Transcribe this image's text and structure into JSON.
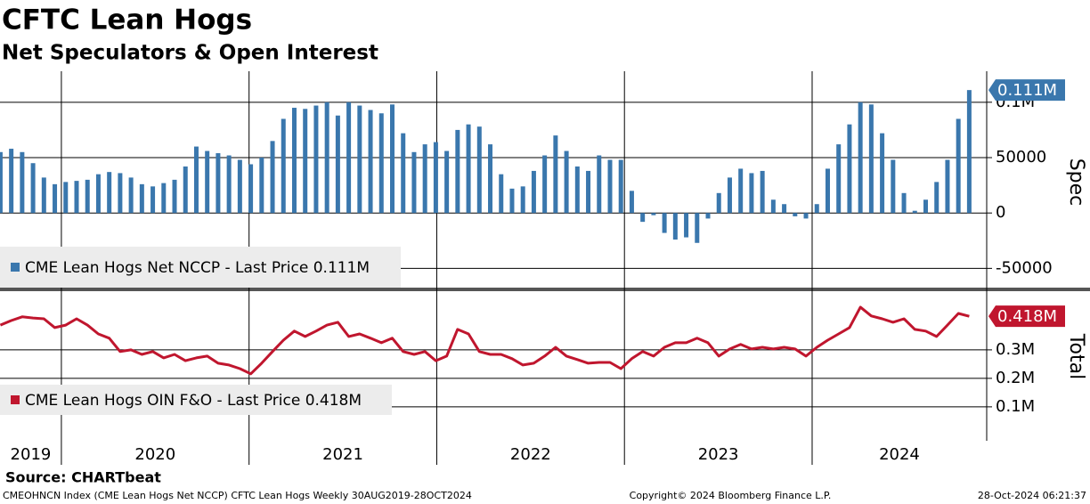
{
  "chart_data": {
    "title": "CFTC Lean Hogs",
    "subtitle": "Net Speculators & Open Interest",
    "source": "Source: CHARTbeat",
    "footer": {
      "left": "CMEOHNCN Index (CME Lean Hogs Net NCCP) CFTC Lean Hogs  Weekly 30AUG2019-28OCT2024",
      "center": "Copyright© 2024 Bloomberg Finance L.P.",
      "right": "28-Oct-2024 06:21:37"
    },
    "xlim": [
      2019.673,
      2024.93
    ],
    "xticks": [
      2019,
      2020,
      2021,
      2022,
      2023,
      2024
    ],
    "grid": true,
    "x": [
      2019.675,
      2019.733,
      2019.791,
      2019.849,
      2019.907,
      2019.965,
      2020.023,
      2020.081,
      2020.139,
      2020.197,
      2020.255,
      2020.313,
      2020.371,
      2020.429,
      2020.487,
      2020.545,
      2020.603,
      2020.661,
      2020.719,
      2020.777,
      2020.835,
      2020.893,
      2020.951,
      2021.009,
      2021.067,
      2021.125,
      2021.183,
      2021.241,
      2021.299,
      2021.357,
      2021.415,
      2021.473,
      2021.531,
      2021.589,
      2021.647,
      2021.705,
      2021.763,
      2021.821,
      2021.879,
      2021.937,
      2021.995,
      2022.053,
      2022.111,
      2022.169,
      2022.227,
      2022.285,
      2022.343,
      2022.401,
      2022.459,
      2022.517,
      2022.575,
      2022.633,
      2022.691,
      2022.749,
      2022.807,
      2022.865,
      2022.923,
      2022.981,
      2023.039,
      2023.097,
      2023.155,
      2023.213,
      2023.271,
      2023.329,
      2023.387,
      2023.445,
      2023.503,
      2023.561,
      2023.619,
      2023.677,
      2023.735,
      2023.793,
      2023.851,
      2023.909,
      2023.967,
      2024.025,
      2024.083,
      2024.141,
      2024.199,
      2024.257,
      2024.315,
      2024.373,
      2024.431,
      2024.489,
      2024.547,
      2024.605,
      2024.663,
      2024.721,
      2024.779,
      2024.837
    ],
    "panels": [
      {
        "type": "bar",
        "ylabel": "Spec",
        "ylim": [
          -69000,
          128000
        ],
        "yticks": [
          -50000,
          0,
          50000,
          {
            "value": 100000,
            "label": "0.1M"
          }
        ],
        "series": [
          {
            "name": "CME Lean Hogs Net NCCP - Last Price 0.111M",
            "color": "#3a77ad",
            "last_value": 111000,
            "last_label": "0.111M",
            "values": [
              55000,
              58000,
              55000,
              45000,
              32000,
              26000,
              28000,
              29000,
              30000,
              35000,
              37000,
              36000,
              32000,
              26000,
              24000,
              27000,
              30000,
              42000,
              60000,
              56000,
              54000,
              52000,
              48000,
              44000,
              50000,
              65000,
              85000,
              95000,
              94000,
              97000,
              100000,
              88000,
              100000,
              97000,
              93000,
              90000,
              98000,
              72000,
              55000,
              62000,
              64000,
              56000,
              75000,
              80000,
              78000,
              62000,
              35000,
              22000,
              24000,
              38000,
              52000,
              70000,
              56000,
              42000,
              38000,
              52000,
              48000,
              48000,
              20000,
              -8000,
              -2000,
              -18000,
              -24000,
              -22000,
              -27000,
              -5000,
              18000,
              32000,
              40000,
              36000,
              38000,
              12000,
              8000,
              -3000,
              -5000,
              8000,
              40000,
              62000,
              80000,
              100000,
              98000,
              72000,
              48000,
              18000,
              2000,
              12000,
              28000,
              48000,
              85000,
              111000
            ]
          }
        ]
      },
      {
        "type": "line",
        "ylabel": "Total",
        "ylim": [
          59000,
          506000
        ],
        "yticks": [
          {
            "value": 100000,
            "label": "0.1M"
          },
          {
            "value": 200000,
            "label": "0.2M"
          },
          {
            "value": 300000,
            "label": "0.3M"
          }
        ],
        "series": [
          {
            "name": "CME Lean Hogs OIN F&O - Last Price 0.418M",
            "color": "#c0162e",
            "last_value": 418000,
            "last_label": "0.418M",
            "values": [
              387000,
              403000,
              416000,
              412000,
              409000,
              378000,
              387000,
              409000,
              387000,
              356000,
              341000,
              294000,
              300000,
              284000,
              294000,
              272000,
              284000,
              262000,
              272000,
              278000,
              253000,
              247000,
              234000,
              216000,
              253000,
              294000,
              334000,
              366000,
              347000,
              366000,
              387000,
              397000,
              347000,
              356000,
              341000,
              325000,
              341000,
              294000,
              284000,
              294000,
              262000,
              278000,
              372000,
              356000,
              294000,
              284000,
              284000,
              269000,
              247000,
              253000,
              278000,
              309000,
              278000,
              266000,
              253000,
              256000,
              256000,
              234000,
              269000,
              294000,
              278000,
              309000,
              325000,
              325000,
              341000,
              325000,
              278000,
              303000,
              319000,
              303000,
              309000,
              303000,
              309000,
              303000,
              278000,
              309000,
              334000,
              356000,
              378000,
              450000,
              419000,
              409000,
              397000,
              409000,
              372000,
              366000,
              347000,
              387000,
              428000,
              418000
            ]
          }
        ]
      }
    ]
  }
}
